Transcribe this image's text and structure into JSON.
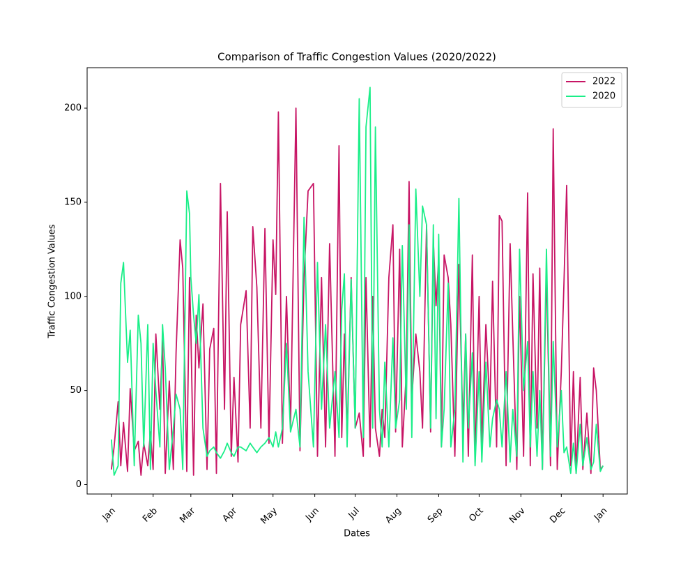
{
  "chart_data": {
    "type": "line",
    "title": "Comparison of Traffic Congestion Values (2020/2022)",
    "xlabel": "Dates",
    "ylabel": "Traffic Congestion Values",
    "x": [
      0,
      2,
      5,
      7,
      9,
      12,
      14,
      17,
      20,
      22,
      24,
      27,
      29,
      31,
      33,
      36,
      38,
      40,
      43,
      46,
      48,
      51,
      53,
      56,
      58,
      59,
      61,
      63,
      65,
      68,
      71,
      73,
      76,
      78,
      81,
      84,
      86,
      89,
      91,
      94,
      96,
      100,
      103,
      105,
      108,
      111,
      114,
      117,
      120,
      122,
      124,
      127,
      130,
      133,
      137,
      140,
      143,
      146,
      150,
      153,
      156,
      159,
      162,
      166,
      169,
      171,
      173,
      175,
      178,
      181,
      184,
      187,
      189,
      192,
      194,
      196,
      199,
      201,
      203,
      206,
      209,
      211,
      214,
      216,
      219,
      221,
      223,
      226,
      229,
      231,
      234,
      237,
      239,
      241,
      243,
      245,
      247,
      250,
      252,
      255,
      258,
      261,
      263,
      265,
      268,
      270,
      273,
      275,
      278,
      281,
      283,
      286,
      288,
      290,
      293,
      296,
      298,
      301,
      303,
      306,
      309,
      311,
      313,
      316,
      318,
      320,
      323,
      326,
      328,
      331,
      334,
      336,
      338,
      341,
      343,
      345,
      348,
      350,
      353,
      356,
      358,
      360,
      363,
      365
    ],
    "series": [
      {
        "name": "2022",
        "color": "#c71565",
        "values": [
          8,
          20,
          44,
          10,
          33,
          7,
          51,
          18,
          23,
          5,
          22,
          10,
          28,
          8,
          80,
          40,
          77,
          6,
          55,
          8,
          70,
          130,
          115,
          7,
          110,
          83,
          5,
          90,
          62,
          96,
          8,
          72,
          83,
          6,
          160,
          40,
          145,
          15,
          57,
          12,
          85,
          103,
          30,
          137,
          105,
          30,
          136,
          22,
          130,
          101,
          198,
          22,
          100,
          30,
          200,
          18,
          110,
          156,
          160,
          15,
          110,
          20,
          128,
          15,
          180,
          25,
          80,
          25,
          110,
          30,
          38,
          15,
          110,
          20,
          100,
          30,
          15,
          40,
          25,
          110,
          138,
          28,
          125,
          20,
          60,
          161,
          45,
          80,
          60,
          30,
          138,
          28,
          130,
          95,
          120,
          20,
          122,
          110,
          85,
          15,
          117,
          30,
          80,
          15,
          122,
          12,
          100,
          20,
          85,
          40,
          108,
          20,
          143,
          140,
          10,
          128,
          80,
          8,
          100,
          15,
          155,
          10,
          112,
          30,
          115,
          8,
          114,
          10,
          189,
          8,
          60,
          108,
          159,
          10,
          60,
          6,
          57,
          8,
          38,
          6,
          62,
          50,
          8,
          10
        ]
      },
      {
        "name": "2020",
        "color": "#1aee88",
        "values": [
          24,
          5,
          10,
          107,
          118,
          65,
          82,
          10,
          90,
          75,
          20,
          85,
          8,
          75,
          50,
          20,
          85,
          62,
          8,
          30,
          48,
          40,
          8,
          156,
          144,
          110,
          90,
          75,
          101,
          30,
          15,
          18,
          20,
          17,
          14,
          18,
          22,
          17,
          15,
          20,
          20,
          18,
          22,
          20,
          17,
          20,
          22,
          25,
          20,
          28,
          20,
          30,
          75,
          28,
          40,
          20,
          142,
          60,
          20,
          118,
          40,
          85,
          30,
          60,
          25,
          93,
          112,
          20,
          109,
          30,
          205,
          25,
          190,
          211,
          30,
          190,
          40,
          20,
          65,
          20,
          78,
          30,
          45,
          127,
          40,
          138,
          25,
          157,
          100,
          148,
          138,
          30,
          138,
          35,
          133,
          20,
          40,
          107,
          20,
          40,
          152,
          12,
          80,
          30,
          70,
          10,
          60,
          12,
          65,
          20,
          35,
          45,
          40,
          20,
          60,
          12,
          40,
          15,
          125,
          50,
          76,
          20,
          60,
          15,
          50,
          8,
          125,
          15,
          76,
          20,
          50,
          17,
          20,
          6,
          22,
          6,
          32,
          10,
          25,
          8,
          12,
          32,
          7,
          10
        ]
      }
    ],
    "xlim": [
      -18,
      383
    ],
    "xticks": [
      {
        "value": 0,
        "label": "Jan"
      },
      {
        "value": 31,
        "label": "Feb"
      },
      {
        "value": 59,
        "label": "Mar"
      },
      {
        "value": 90,
        "label": "Apr"
      },
      {
        "value": 120,
        "label": "May"
      },
      {
        "value": 151,
        "label": "Jun"
      },
      {
        "value": 181,
        "label": "Jul"
      },
      {
        "value": 212,
        "label": "Aug"
      },
      {
        "value": 243,
        "label": "Sep"
      },
      {
        "value": 273,
        "label": "Oct"
      },
      {
        "value": 304,
        "label": "Nov"
      },
      {
        "value": 334,
        "label": "Dec"
      },
      {
        "value": 365,
        "label": "Jan"
      }
    ],
    "ylim": [
      -5,
      221.5
    ],
    "yticks": [
      0,
      50,
      100,
      150,
      200
    ],
    "legend": "upper right"
  }
}
